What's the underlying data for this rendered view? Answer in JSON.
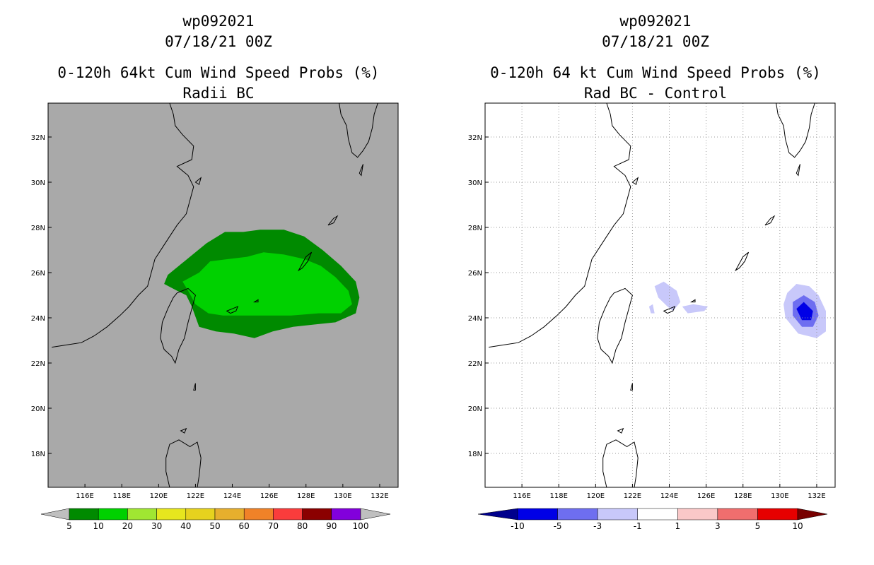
{
  "colors": {
    "left_background": "#a9a9a9",
    "left_palette": [
      "#bfbfbf",
      "#008a00",
      "#00d100",
      "#a0e632",
      "#e6e61e",
      "#e6d21e",
      "#e6af2d",
      "#f08228",
      "#fa3c3c",
      "#8b0000",
      "#8200dc",
      "#bfbfbf"
    ],
    "right_palette": [
      "#00008c",
      "#0000e6",
      "#6e6ef0",
      "#c8c8fa",
      "#ffffff",
      "#fac8c8",
      "#f06e6e",
      "#e60000",
      "#780000"
    ]
  },
  "chart_data": [
    {
      "type": "heatmap",
      "panel": "left",
      "title_line1": "wp092021",
      "title_line2": "07/18/21 00Z",
      "title_line3": "0-120h 64kt Cum Wind Speed Probs (%)",
      "title_line4": "Radii BC",
      "x_ticks": [
        "116E",
        "118E",
        "120E",
        "122E",
        "124E",
        "126E",
        "128E",
        "130E",
        "132E"
      ],
      "y_ticks": [
        "18N",
        "20N",
        "22N",
        "24N",
        "26N",
        "28N",
        "30N",
        "32N"
      ],
      "xlim": [
        114.0,
        133.0
      ],
      "ylim": [
        16.5,
        33.5
      ],
      "grid": false,
      "colorbar_labels": [
        "5",
        "10",
        "20",
        "30",
        "40",
        "50",
        "60",
        "70",
        "80",
        "90",
        "100"
      ],
      "contours": [
        {
          "level": "5-10",
          "color": "#008a00",
          "lonlat": [
            [
              120.3,
              25.5
            ],
            [
              120.5,
              25.9
            ],
            [
              121.4,
              26.5
            ],
            [
              122.6,
              27.3
            ],
            [
              123.6,
              27.8
            ],
            [
              124.6,
              27.8
            ],
            [
              125.5,
              27.9
            ],
            [
              126.8,
              27.9
            ],
            [
              127.9,
              27.6
            ],
            [
              128.9,
              27.0
            ],
            [
              129.9,
              26.3
            ],
            [
              130.7,
              25.6
            ],
            [
              130.9,
              24.9
            ],
            [
              130.7,
              24.2
            ],
            [
              129.6,
              23.8
            ],
            [
              128.4,
              23.7
            ],
            [
              127.3,
              23.6
            ],
            [
              126.2,
              23.4
            ],
            [
              125.2,
              23.1
            ],
            [
              124.1,
              23.3
            ],
            [
              123.1,
              23.4
            ],
            [
              122.2,
              23.6
            ],
            [
              121.8,
              24.5
            ],
            [
              121.5,
              25.0
            ],
            [
              121.0,
              25.2
            ]
          ]
        },
        {
          "level": "10-20",
          "color": "#00d100",
          "lonlat": [
            [
              121.3,
              25.6
            ],
            [
              122.2,
              26.0
            ],
            [
              122.8,
              26.5
            ],
            [
              123.8,
              26.6
            ],
            [
              124.8,
              26.7
            ],
            [
              125.7,
              26.9
            ],
            [
              126.8,
              26.8
            ],
            [
              127.9,
              26.6
            ],
            [
              128.8,
              26.3
            ],
            [
              129.6,
              25.8
            ],
            [
              130.3,
              25.2
            ],
            [
              130.5,
              24.6
            ],
            [
              129.9,
              24.2
            ],
            [
              128.7,
              24.2
            ],
            [
              127.2,
              24.1
            ],
            [
              125.8,
              24.1
            ],
            [
              124.6,
              24.1
            ],
            [
              123.5,
              24.1
            ],
            [
              122.7,
              24.2
            ],
            [
              122.0,
              24.6
            ],
            [
              121.6,
              25.2
            ]
          ]
        }
      ]
    },
    {
      "type": "heatmap",
      "panel": "right",
      "title_line1": "wp092021",
      "title_line2": "07/18/21 00Z",
      "title_line3": "0-120h 64 kt Cum Wind Speed Probs (%)",
      "title_line4": "Rad BC - Control",
      "x_ticks": [
        "116E",
        "118E",
        "120E",
        "122E",
        "124E",
        "126E",
        "128E",
        "130E",
        "132E"
      ],
      "y_ticks": [
        "18N",
        "20N",
        "22N",
        "24N",
        "26N",
        "28N",
        "30N",
        "32N"
      ],
      "xlim": [
        114.0,
        133.0
      ],
      "ylim": [
        16.5,
        33.5
      ],
      "grid": true,
      "colorbar_labels": [
        "-10",
        "-5",
        "-3",
        "-1",
        "1",
        "3",
        "5",
        "10"
      ],
      "contours": [
        {
          "level": "-3 to -1",
          "color": "#c8c8fa",
          "lonlat": [
            [
              130.4,
              25.1
            ],
            [
              130.9,
              25.5
            ],
            [
              131.6,
              25.4
            ],
            [
              132.1,
              25.0
            ],
            [
              132.5,
              24.3
            ],
            [
              132.5,
              23.4
            ],
            [
              132.0,
              23.1
            ],
            [
              131.0,
              23.3
            ],
            [
              130.3,
              24.0
            ],
            [
              130.2,
              24.6
            ]
          ]
        },
        {
          "level": "-5 to -3",
          "color": "#6e6ef0",
          "lonlat": [
            [
              130.7,
              24.7
            ],
            [
              131.3,
              25.0
            ],
            [
              131.9,
              24.7
            ],
            [
              132.1,
              24.1
            ],
            [
              131.8,
              23.6
            ],
            [
              131.2,
              23.6
            ],
            [
              130.7,
              24.1
            ]
          ]
        },
        {
          "level": "-10 to -5",
          "color": "#0000e6",
          "lonlat": [
            [
              130.9,
              24.4
            ],
            [
              131.3,
              24.7
            ],
            [
              131.8,
              24.3
            ],
            [
              131.7,
              23.9
            ],
            [
              131.2,
              23.9
            ]
          ]
        },
        {
          "level": "-3 to -1",
          "color": "#c8c8fa",
          "lonlat": [
            [
              123.2,
              25.4
            ],
            [
              123.7,
              25.6
            ],
            [
              124.4,
              25.2
            ],
            [
              124.6,
              24.7
            ],
            [
              124.2,
              24.3
            ],
            [
              123.9,
              24.5
            ],
            [
              123.4,
              24.9
            ]
          ]
        },
        {
          "level": "-3 to -1",
          "color": "#c8c8fa",
          "lonlat": [
            [
              124.7,
              24.5
            ],
            [
              125.3,
              24.6
            ],
            [
              126.1,
              24.5
            ],
            [
              125.9,
              24.3
            ],
            [
              125.0,
              24.2
            ]
          ]
        },
        {
          "level": "-3 to -1",
          "color": "#c8c8fa",
          "lonlat": [
            [
              122.9,
              24.5
            ],
            [
              123.1,
              24.6
            ],
            [
              123.2,
              24.2
            ],
            [
              123.0,
              24.2
            ]
          ]
        }
      ]
    }
  ]
}
